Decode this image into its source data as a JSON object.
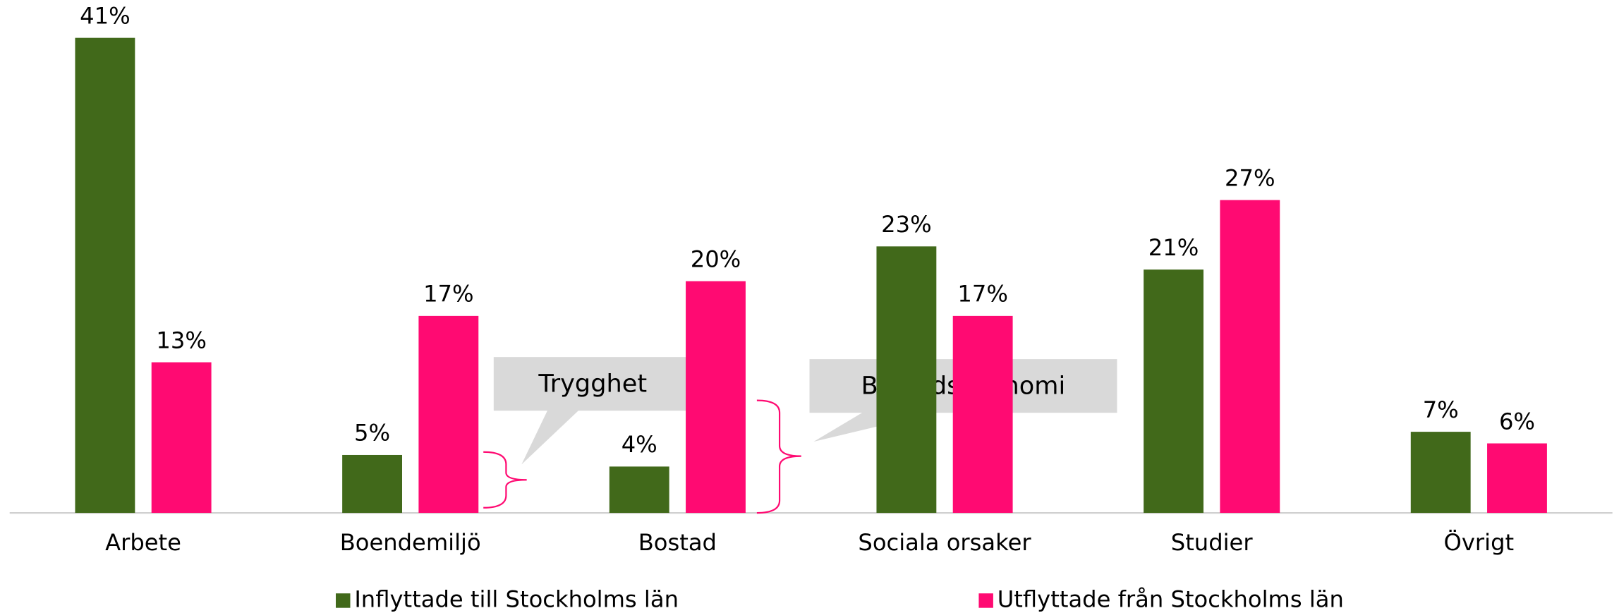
{
  "chart_data": {
    "type": "bar",
    "categories": [
      "Arbete",
      "Boendemiljö",
      "Bostad",
      "Sociala orsaker",
      "Studier",
      "Övrigt"
    ],
    "series": [
      {
        "name": "Inflyttade till Stockholms län",
        "color": "#41691a",
        "values": [
          41,
          5,
          4,
          23,
          21,
          7
        ],
        "value_labels": [
          "41%",
          "5%",
          "4%",
          "23%",
          "21%",
          "7%"
        ]
      },
      {
        "name": "Utflyttade från Stockholms län",
        "color": "#ff0a72",
        "values": [
          13,
          17,
          20,
          17,
          27,
          6
        ],
        "value_labels": [
          "13%",
          "17%",
          "20%",
          "17%",
          "27%",
          "6%"
        ]
      }
    ],
    "ylim": [
      0,
      44
    ],
    "annotations": [
      "Trygghet",
      "Bostadsekonomi"
    ]
  }
}
